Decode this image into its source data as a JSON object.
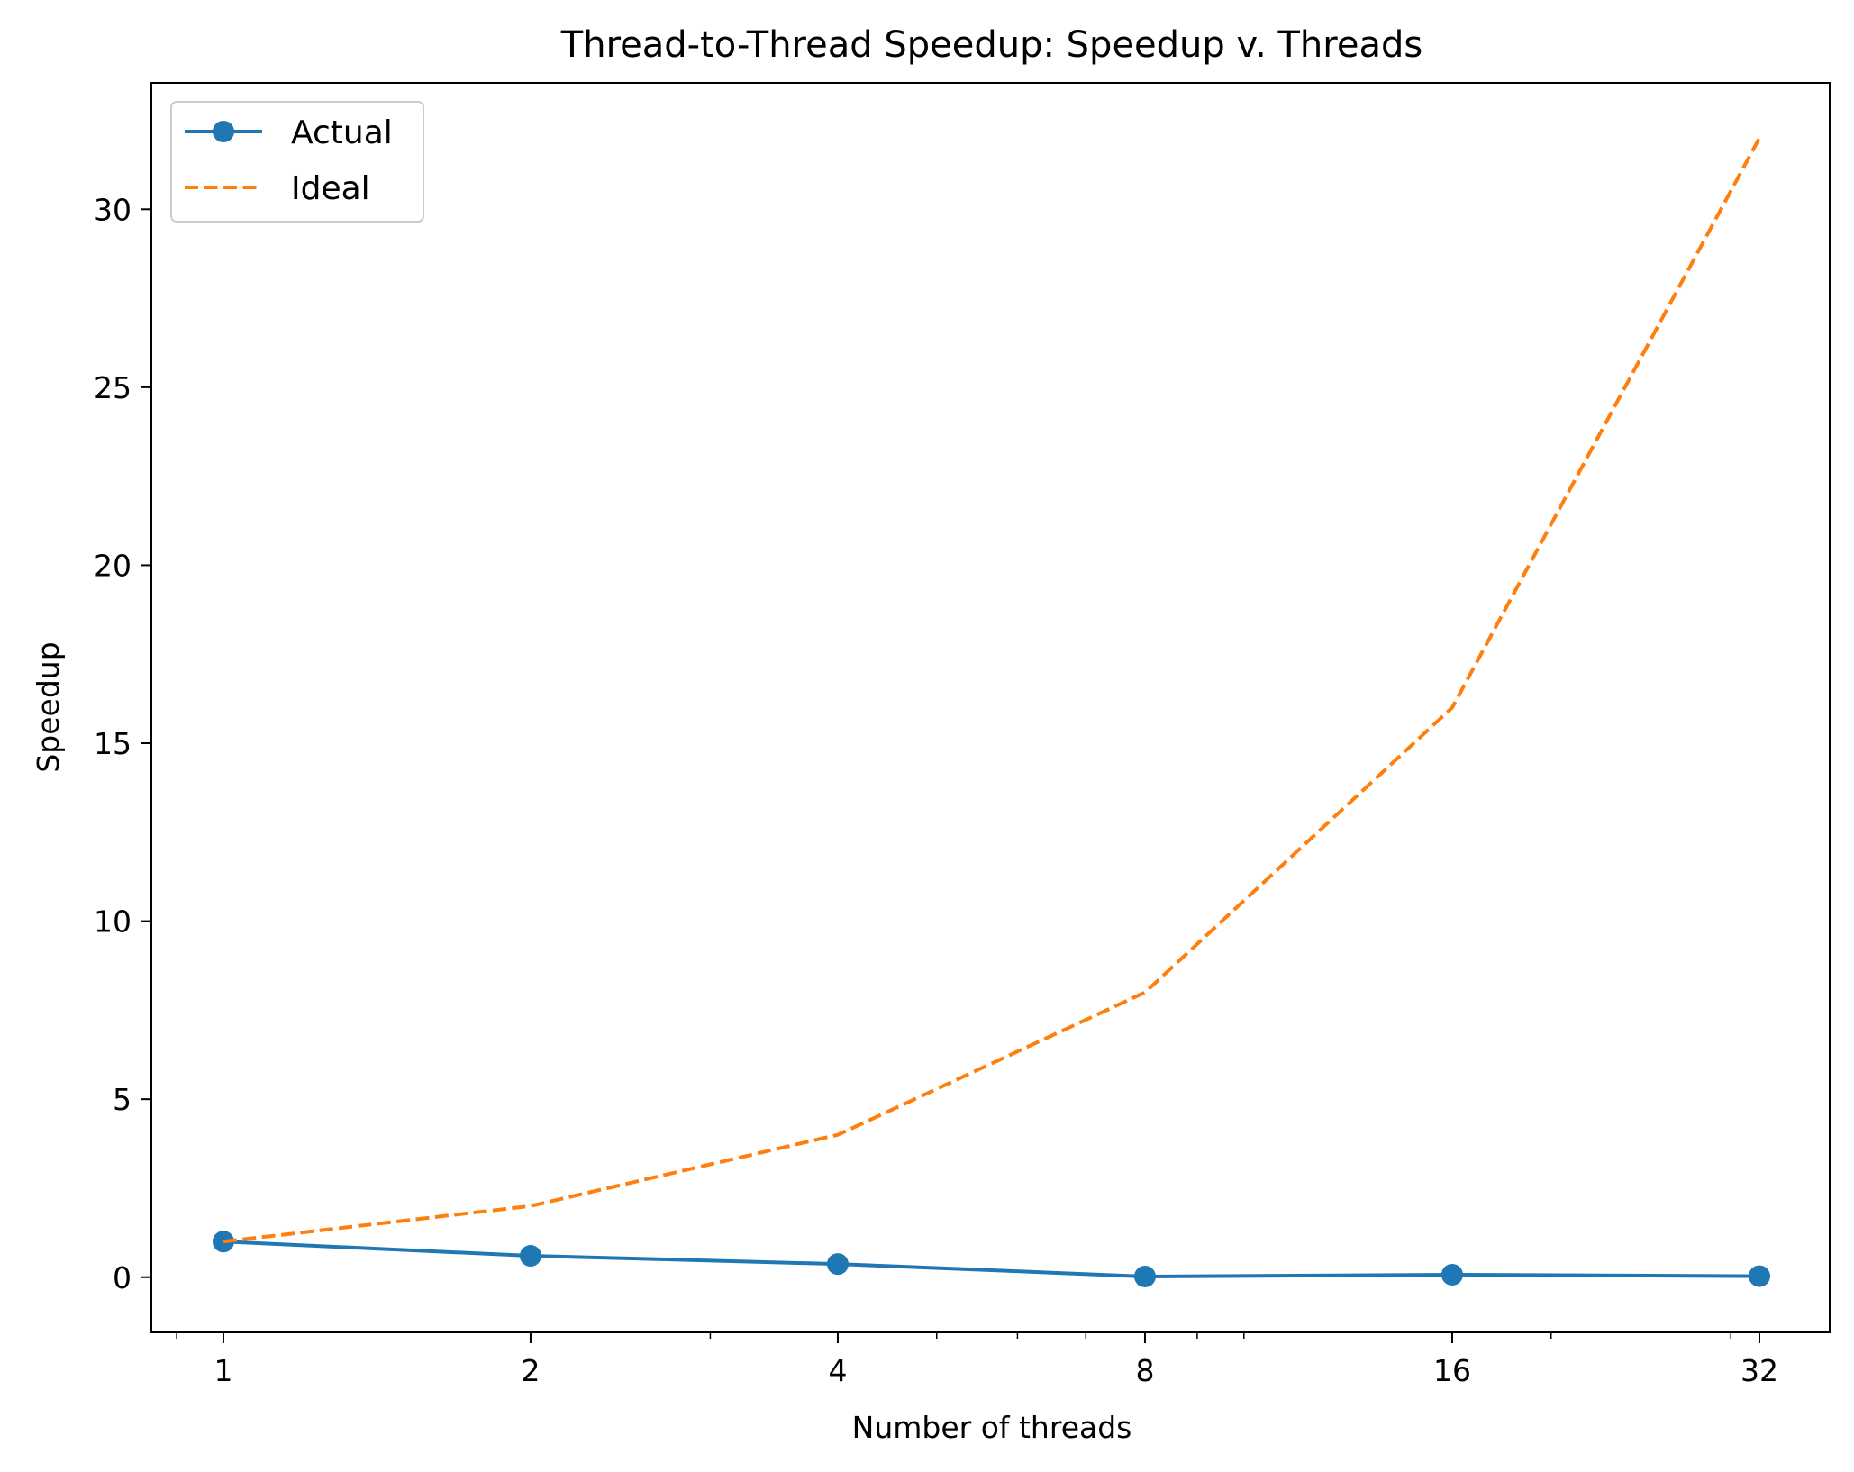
{
  "chart_data": {
    "type": "line",
    "title": "Thread-to-Thread Speedup: Speedup v. Threads",
    "xlabel": "Number of threads",
    "ylabel": "Speedup",
    "x_scale": "log2",
    "x": [
      1,
      2,
      4,
      8,
      16,
      32
    ],
    "x_tick_labels": [
      "1",
      "2",
      "4",
      "8",
      "16",
      "32"
    ],
    "y_ticks": [
      0,
      5,
      10,
      15,
      20,
      25,
      30
    ],
    "y_tick_labels": [
      "0",
      "5",
      "10",
      "15",
      "20",
      "25",
      "30"
    ],
    "xlim": [
      0.85,
      37.5
    ],
    "ylim": [
      -1.55,
      33.55
    ],
    "grid": false,
    "legend_position": "upper-left",
    "series": [
      {
        "name": "Actual",
        "values": [
          1.0,
          0.6,
          0.37,
          0.02,
          0.07,
          0.03
        ],
        "color": "#1f77b4",
        "style": "solid",
        "marker": "circle"
      },
      {
        "name": "Ideal",
        "values": [
          1,
          2,
          4,
          8,
          16,
          32
        ],
        "color": "#ff7f0e",
        "style": "dashed",
        "marker": "none"
      }
    ]
  }
}
